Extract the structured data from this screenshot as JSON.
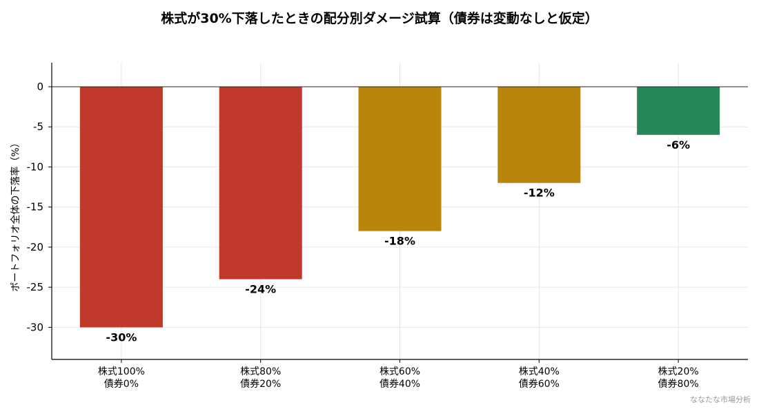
{
  "chart_data": {
    "type": "bar",
    "title": "株式が30%下落したときの配分別ダメージ試算（債券は変動なしと仮定）",
    "xlabel": "",
    "ylabel": "ポートフォリオ全体の下落率（%）",
    "categories": [
      [
        "株式100%",
        "債券0%"
      ],
      [
        "株式80%",
        "債券20%"
      ],
      [
        "株式60%",
        "債券40%"
      ],
      [
        "株式40%",
        "債券60%"
      ],
      [
        "株式20%",
        "債券80%"
      ]
    ],
    "values": [
      -30,
      -24,
      -18,
      -12,
      -6
    ],
    "value_labels": [
      "-30%",
      "-24%",
      "-18%",
      "-12%",
      "-6%"
    ],
    "colors": [
      "#c0392b",
      "#c0392b",
      "#b8860b",
      "#b8860b",
      "#27865a"
    ],
    "ylim": [
      -34,
      3
    ],
    "yticks": [
      0,
      -5,
      -10,
      -15,
      -20,
      -25,
      -30
    ],
    "grid": true
  },
  "credit": "ななたな市場分析"
}
